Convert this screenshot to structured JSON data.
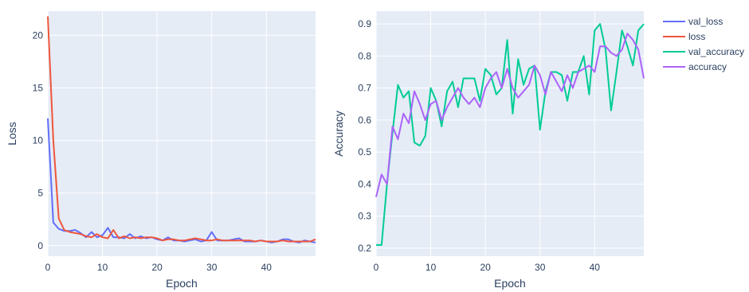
{
  "chart_data": [
    {
      "type": "line",
      "xlabel": "Epoch",
      "ylabel": "Loss",
      "xlim": [
        0,
        49
      ],
      "ylim": [
        -1,
        22.3
      ],
      "xticks": [
        0,
        10,
        20,
        30,
        40
      ],
      "yticks": [
        0,
        5,
        10,
        15,
        20
      ],
      "grid": true,
      "plot_bg": "#e5ecf6",
      "x": [
        0,
        1,
        2,
        3,
        4,
        5,
        6,
        7,
        8,
        9,
        10,
        11,
        12,
        13,
        14,
        15,
        16,
        17,
        18,
        19,
        20,
        21,
        22,
        23,
        24,
        25,
        26,
        27,
        28,
        29,
        30,
        31,
        32,
        33,
        34,
        35,
        36,
        37,
        38,
        39,
        40,
        41,
        42,
        43,
        44,
        45,
        46,
        47,
        48,
        49
      ],
      "series": [
        {
          "name": "val_loss",
          "color": "#636efa",
          "values": [
            12.1,
            2.2,
            1.6,
            1.4,
            1.4,
            1.5,
            1.2,
            0.8,
            1.3,
            0.8,
            1.0,
            1.7,
            0.8,
            0.8,
            0.7,
            1.1,
            0.7,
            0.9,
            0.7,
            0.8,
            0.6,
            0.5,
            0.8,
            0.5,
            0.5,
            0.4,
            0.5,
            0.6,
            0.4,
            0.5,
            1.3,
            0.5,
            0.5,
            0.5,
            0.6,
            0.7,
            0.4,
            0.4,
            0.4,
            0.5,
            0.4,
            0.3,
            0.4,
            0.6,
            0.6,
            0.4,
            0.3,
            0.5,
            0.4,
            0.3
          ]
        },
        {
          "name": "loss",
          "color": "#ef553b",
          "values": [
            21.8,
            10.0,
            2.6,
            1.5,
            1.3,
            1.2,
            1.1,
            0.9,
            0.8,
            1.1,
            0.8,
            0.7,
            1.5,
            0.7,
            0.9,
            0.7,
            0.8,
            0.7,
            0.8,
            0.8,
            0.7,
            0.5,
            0.6,
            0.6,
            0.5,
            0.5,
            0.6,
            0.7,
            0.6,
            0.5,
            0.5,
            0.6,
            0.5,
            0.5,
            0.5,
            0.5,
            0.5,
            0.5,
            0.4,
            0.5,
            0.4,
            0.4,
            0.4,
            0.5,
            0.4,
            0.4,
            0.4,
            0.4,
            0.4,
            0.6
          ]
        }
      ]
    },
    {
      "type": "line",
      "xlabel": "Epoch",
      "ylabel": "Accuracy",
      "xlim": [
        0,
        49
      ],
      "ylim": [
        0.175,
        0.94
      ],
      "xticks": [
        0,
        10,
        20,
        30,
        40
      ],
      "yticks": [
        0.2,
        0.3,
        0.4,
        0.5,
        0.6,
        0.7,
        0.8,
        0.9
      ],
      "ytick_labels": [
        "0.2",
        "0.3",
        "0.4",
        "0.5",
        "0.6",
        "0.7",
        "0.8",
        "0.9"
      ],
      "grid": true,
      "plot_bg": "#e5ecf6",
      "x": [
        0,
        1,
        2,
        3,
        4,
        5,
        6,
        7,
        8,
        9,
        10,
        11,
        12,
        13,
        14,
        15,
        16,
        17,
        18,
        19,
        20,
        21,
        22,
        23,
        24,
        25,
        26,
        27,
        28,
        29,
        30,
        31,
        32,
        33,
        34,
        35,
        36,
        37,
        38,
        39,
        40,
        41,
        42,
        43,
        44,
        45,
        46,
        47,
        48,
        49
      ],
      "series": [
        {
          "name": "val_accuracy",
          "color": "#00cc96",
          "values": [
            0.21,
            0.21,
            0.4,
            0.56,
            0.71,
            0.67,
            0.69,
            0.53,
            0.52,
            0.55,
            0.7,
            0.66,
            0.58,
            0.69,
            0.72,
            0.64,
            0.73,
            0.73,
            0.73,
            0.66,
            0.76,
            0.74,
            0.68,
            0.7,
            0.85,
            0.62,
            0.79,
            0.71,
            0.76,
            0.77,
            0.57,
            0.69,
            0.75,
            0.75,
            0.74,
            0.66,
            0.75,
            0.75,
            0.8,
            0.68,
            0.88,
            0.9,
            0.82,
            0.63,
            0.75,
            0.88,
            0.83,
            0.77,
            0.88,
            0.9
          ]
        },
        {
          "name": "accuracy",
          "color": "#ab63fa",
          "values": [
            0.36,
            0.43,
            0.4,
            0.58,
            0.54,
            0.62,
            0.59,
            0.69,
            0.65,
            0.6,
            0.65,
            0.66,
            0.6,
            0.64,
            0.67,
            0.7,
            0.67,
            0.65,
            0.67,
            0.64,
            0.7,
            0.73,
            0.75,
            0.7,
            0.76,
            0.7,
            0.67,
            0.69,
            0.71,
            0.77,
            0.74,
            0.68,
            0.75,
            0.72,
            0.69,
            0.74,
            0.7,
            0.75,
            0.76,
            0.77,
            0.75,
            0.83,
            0.83,
            0.81,
            0.8,
            0.82,
            0.87,
            0.85,
            0.82,
            0.73
          ]
        }
      ]
    }
  ],
  "legend": {
    "position": "top-right",
    "items": [
      "val_loss",
      "loss",
      "val_accuracy",
      "accuracy"
    ]
  }
}
